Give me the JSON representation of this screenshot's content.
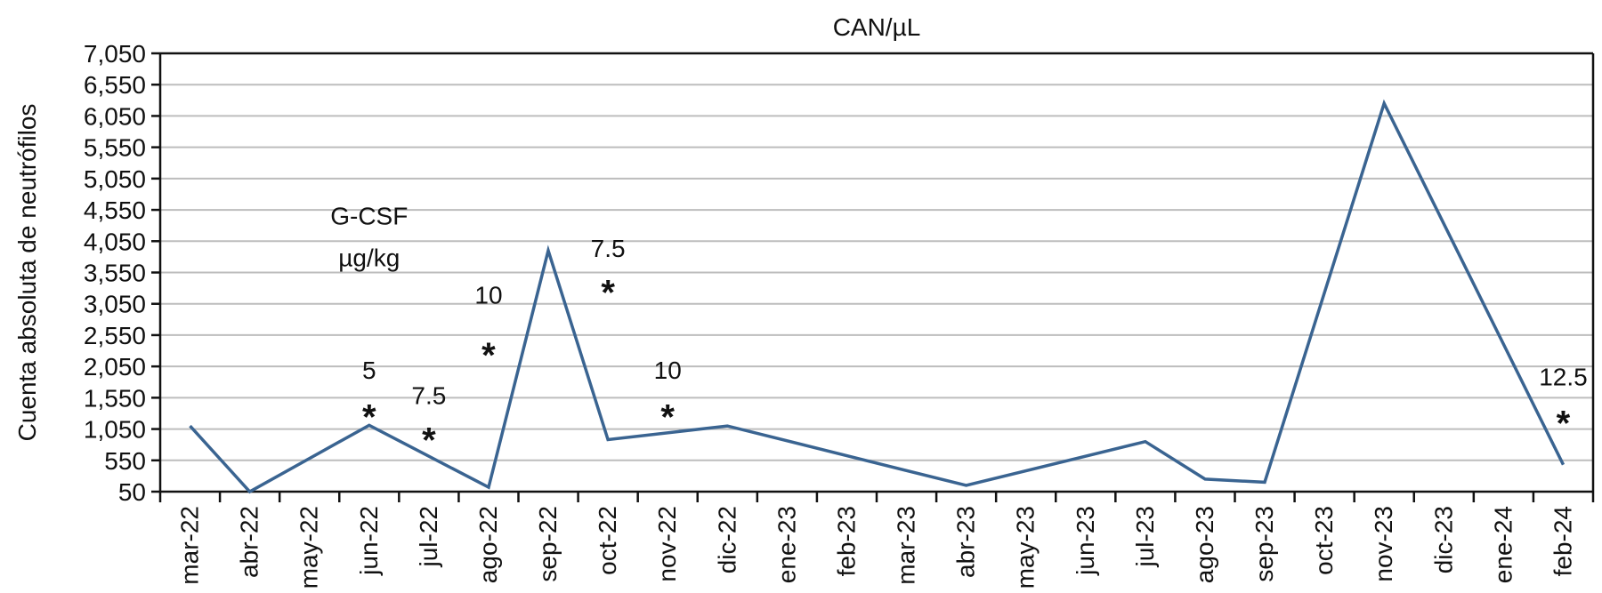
{
  "chart_data": {
    "type": "line",
    "title": "CAN/µL",
    "ylabel": "Cuenta absoluta de neutrófilos",
    "xlabel": "",
    "ylim": [
      50,
      7050
    ],
    "yticks": [
      "7,050",
      "6,550",
      "6,050",
      "5,550",
      "5,050",
      "4,550",
      "4,050",
      "3,550",
      "3,050",
      "2,550",
      "2,050",
      "1,550",
      "1,050",
      "550",
      "50"
    ],
    "ytick_values": [
      7050,
      6550,
      6050,
      5550,
      5050,
      4550,
      4050,
      3550,
      3050,
      2550,
      2050,
      1550,
      1050,
      550,
      50
    ],
    "categories": [
      "mar-22",
      "abr-22",
      "may-22",
      "jun-22",
      "jul-22",
      "ago-22",
      "sep-22",
      "oct-22",
      "nov-22",
      "dic-22",
      "ene-23",
      "feb-23",
      "mar-23",
      "abr-23",
      "may-23",
      "jun-23",
      "jul-23",
      "ago-23",
      "sep-23",
      "oct-23",
      "nov-23",
      "dic-23",
      "ene-24",
      "feb-24"
    ],
    "grid": true,
    "series": [
      {
        "color": "#3a6491",
        "points": [
          {
            "x": "mar-22",
            "y": 1100
          },
          {
            "x": "abr-22",
            "y": 50
          },
          {
            "x": "jun-22",
            "y": 1110
          },
          {
            "x": "ago-22",
            "y": 120
          },
          {
            "x": "sep-22",
            "y": 3900
          },
          {
            "x": "oct-22",
            "y": 880
          },
          {
            "x": "dic-22",
            "y": 1100
          },
          {
            "x": "abr-23",
            "y": 150
          },
          {
            "x": "jul-23",
            "y": 850
          },
          {
            "x": "ago-23",
            "y": 250
          },
          {
            "x": "sep-23",
            "y": 200
          },
          {
            "x": "nov-23",
            "y": 6250
          },
          {
            "x": "feb-24",
            "y": 480
          }
        ]
      }
    ],
    "annotations": [
      {
        "text": "G-CSF",
        "x": "jun-22",
        "y": 4320
      },
      {
        "text": "µg/kg",
        "x": "jun-22",
        "y": 3650
      },
      {
        "text": "5",
        "x": "jun-22",
        "y": 1850
      },
      {
        "text": "7.5",
        "x": "jul-22",
        "y": 1450
      },
      {
        "text": "10",
        "x": "ago-22",
        "y": 3050
      },
      {
        "text": "7.5",
        "x": "oct-22",
        "y": 3800
      },
      {
        "text": "10",
        "x": "nov-22",
        "y": 1850
      },
      {
        "text": "12.5",
        "x": "feb-24",
        "y": 1750
      }
    ],
    "markers": [
      {
        "symbol": "*",
        "x": "jun-22",
        "y": 1250
      },
      {
        "symbol": "*",
        "x": "jul-22",
        "y": 880
      },
      {
        "symbol": "*",
        "x": "ago-22",
        "y": 2240
      },
      {
        "symbol": "*",
        "x": "oct-22",
        "y": 3240
      },
      {
        "symbol": "*",
        "x": "nov-22",
        "y": 1250
      },
      {
        "symbol": "*",
        "x": "feb-24",
        "y": 1150
      }
    ]
  }
}
